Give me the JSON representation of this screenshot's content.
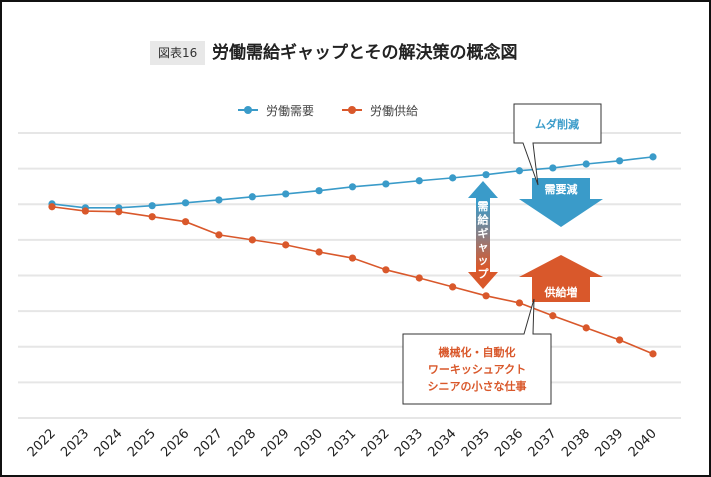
{
  "header": {
    "badge": "図表16",
    "title": "労働需給ギャップとその解決策の概念図"
  },
  "colors": {
    "demand": "#3a9bc9",
    "supply": "#d9582b",
    "grid": "#e6e6e6",
    "badge_bg": "#e8e8e8"
  },
  "chart_data": {
    "type": "line",
    "title": "労働需給ギャップとその解決策の概念図",
    "xlabel": "",
    "ylabel": "",
    "x": [
      "2022",
      "2023",
      "2024",
      "2025",
      "2026",
      "2027",
      "2028",
      "2029",
      "2030",
      "2031",
      "2032",
      "2033",
      "2034",
      "2035",
      "2036",
      "2037",
      "2038",
      "2039",
      "2040"
    ],
    "ylim": [
      0,
      80
    ],
    "y_ticks_labeled": false,
    "grid": true,
    "legend_position": "top-center",
    "series": [
      {
        "name": "労働需要",
        "color": "#3a9bc9",
        "values": [
          60.1,
          59.0,
          59.0,
          59.6,
          60.4,
          61.2,
          62.1,
          62.9,
          63.8,
          64.9,
          65.7,
          66.6,
          67.4,
          68.3,
          69.4,
          70.2,
          71.3,
          72.2,
          73.3
        ]
      },
      {
        "name": "労働供給",
        "color": "#d9582b",
        "values": [
          59.3,
          58.1,
          57.9,
          56.5,
          55.1,
          51.4,
          50.0,
          48.6,
          46.6,
          44.9,
          41.6,
          39.3,
          36.8,
          34.3,
          32.3,
          28.7,
          25.3,
          21.9,
          18.0
        ]
      }
    ],
    "annotations": [
      {
        "type": "double-arrow",
        "label": "需給ギャップ"
      },
      {
        "type": "down-arrow",
        "label": "需要減",
        "color": "#3a9bc9"
      },
      {
        "type": "up-arrow",
        "label": "供給増",
        "color": "#d9582b"
      },
      {
        "type": "callout",
        "label": "ムダ削減",
        "color": "#3a9bc9"
      },
      {
        "type": "callout",
        "lines": [
          "機械化・自動化",
          "ワーキッシュアクト",
          "シニアの小さな仕事"
        ],
        "color": "#d9582b"
      }
    ]
  }
}
